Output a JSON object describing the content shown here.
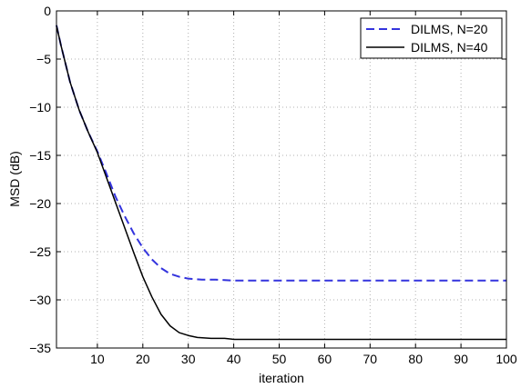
{
  "chart_data": {
    "type": "line",
    "title": "",
    "xlabel": "iteration",
    "ylabel": "MSD (dB)",
    "xlim": [
      1,
      100
    ],
    "ylim": [
      -35,
      0
    ],
    "xticks": [
      10,
      20,
      30,
      40,
      50,
      60,
      70,
      80,
      90,
      100
    ],
    "yticks": [
      0,
      -5,
      -10,
      -15,
      -20,
      -25,
      -30,
      -35
    ],
    "grid": true,
    "legend_position": "top-right",
    "series": [
      {
        "name": "DILMS, N=20",
        "color": "#3333dd",
        "style": "dashed",
        "x": [
          1,
          2,
          4,
          6,
          8,
          10,
          12,
          14,
          16,
          18,
          20,
          22,
          24,
          26,
          28,
          30,
          33,
          36,
          40,
          45,
          50,
          60,
          70,
          80,
          90,
          100
        ],
        "y": [
          -1.5,
          -3.6,
          -7.4,
          -10.3,
          -12.6,
          -14.6,
          -16.9,
          -19.3,
          -21.3,
          -23.1,
          -24.6,
          -25.8,
          -26.7,
          -27.3,
          -27.6,
          -27.8,
          -27.9,
          -27.9,
          -28.0,
          -28.0,
          -28.0,
          -28.0,
          -28.0,
          -28.0,
          -28.0,
          -28.0
        ]
      },
      {
        "name": "DILMS, N=40",
        "color": "#000000",
        "style": "solid",
        "x": [
          1,
          2,
          4,
          6,
          8,
          10,
          12,
          14,
          16,
          18,
          20,
          22,
          24,
          26,
          28,
          30,
          32,
          35,
          38,
          40,
          45,
          50,
          60,
          70,
          80,
          90,
          100
        ],
        "y": [
          -1.5,
          -3.6,
          -7.4,
          -10.3,
          -12.6,
          -14.7,
          -17.3,
          -19.9,
          -22.5,
          -25.1,
          -27.6,
          -29.7,
          -31.5,
          -32.7,
          -33.4,
          -33.7,
          -33.9,
          -34.0,
          -34.0,
          -34.1,
          -34.1,
          -34.1,
          -34.1,
          -34.1,
          -34.1,
          -34.1,
          -34.1
        ]
      }
    ]
  }
}
